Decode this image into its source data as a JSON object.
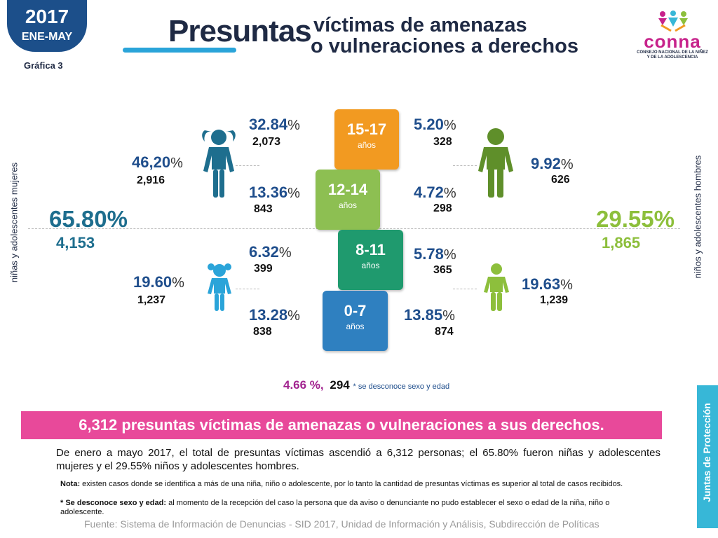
{
  "header": {
    "year": "2017",
    "period": "ENE-MAY",
    "chart_label": "Gráfica 3",
    "title_main": "Presuntas",
    "title_line1": "víctimas de amenazas",
    "title_line2": "o vulneraciones a derechos"
  },
  "logo": {
    "name": "conna",
    "subtitle_line1": "CONSEJO NACIONAL DE LA NIÑEZ",
    "subtitle_line2": "Y DE LA ADOLESCENCIA"
  },
  "side_labels": {
    "left": "niñas y adolescentes mujeres",
    "right": "niños y adolescentes hombres"
  },
  "female": {
    "total_pct": "65.80%",
    "total_num": "4,153",
    "adolescent_pct": "46,20",
    "adolescent_num": "2,916",
    "child_pct": "19.60",
    "child_num": "1,237",
    "color": "#1e6e8e"
  },
  "male": {
    "total_pct": "29.55%",
    "total_num": "1,865",
    "adolescent_pct": "9.92",
    "adolescent_num": "626",
    "child_pct": "19.63",
    "child_num": "1,239",
    "color": "#8dbf3c"
  },
  "age_groups": [
    {
      "range": "15-17",
      "unit": "años",
      "female_pct": "32.84",
      "female_num": "2,073",
      "male_pct": "5.20",
      "male_num": "328",
      "color": "#f29a21"
    },
    {
      "range": "12-14",
      "unit": "años",
      "female_pct": "13.36",
      "female_num": "843",
      "male_pct": "4.72",
      "male_num": "298",
      "color": "#8dbf52"
    },
    {
      "range": "8-11",
      "unit": "años",
      "female_pct": "6.32",
      "female_num": "399",
      "male_pct": "5.78",
      "male_num": "365",
      "color": "#1f9a6e"
    },
    {
      "range": "0-7",
      "unit": "años",
      "female_pct": "13.28",
      "female_num": "838",
      "male_pct": "13.85",
      "male_num": "874",
      "color": "#2f80c0"
    }
  ],
  "percent_symbol": "%",
  "unknown": {
    "pct": "4.66 %,",
    "num": "294",
    "label": "* se desconoce sexo y edad"
  },
  "banner": "6,312 presuntas víctimas de amenazas o vulneraciones a sus derechos.",
  "body_text": "De enero a mayo 2017, el total de presuntas víctimas ascendió a 6,312 personas; el 65.80% fueron niñas y adolescentes mujeres y el 29.55% niños y adolescentes hombres.",
  "note1_label": "Nota:",
  "note1_text": " existen casos donde se identifica a más de una niña, niño o adolescente, por lo tanto la cantidad de presuntas víctimas es superior al total de casos recibidos.",
  "note2_label": "* Se desconoce sexo y edad:",
  "note2_text": " al momento de la recepción del caso la persona que da aviso o denunciante no pudo establecer el sexo o edad de la niña, niño o adolescente.",
  "source": "Fuente: Sistema de Información de Denuncias - SID 2017, Unidad de Información y Análisis, Subdirección de Políticas",
  "side_tab": "Juntas de Protección",
  "colors": {
    "dark_navy": "#1f2a44",
    "female_blue": "#1e6e8e",
    "male_green": "#8dbf3c",
    "magenta": "#e8499a",
    "cyan": "#37b7d7",
    "badge_blue": "#1c4f8a",
    "unknown_purple": "#a2238f"
  }
}
